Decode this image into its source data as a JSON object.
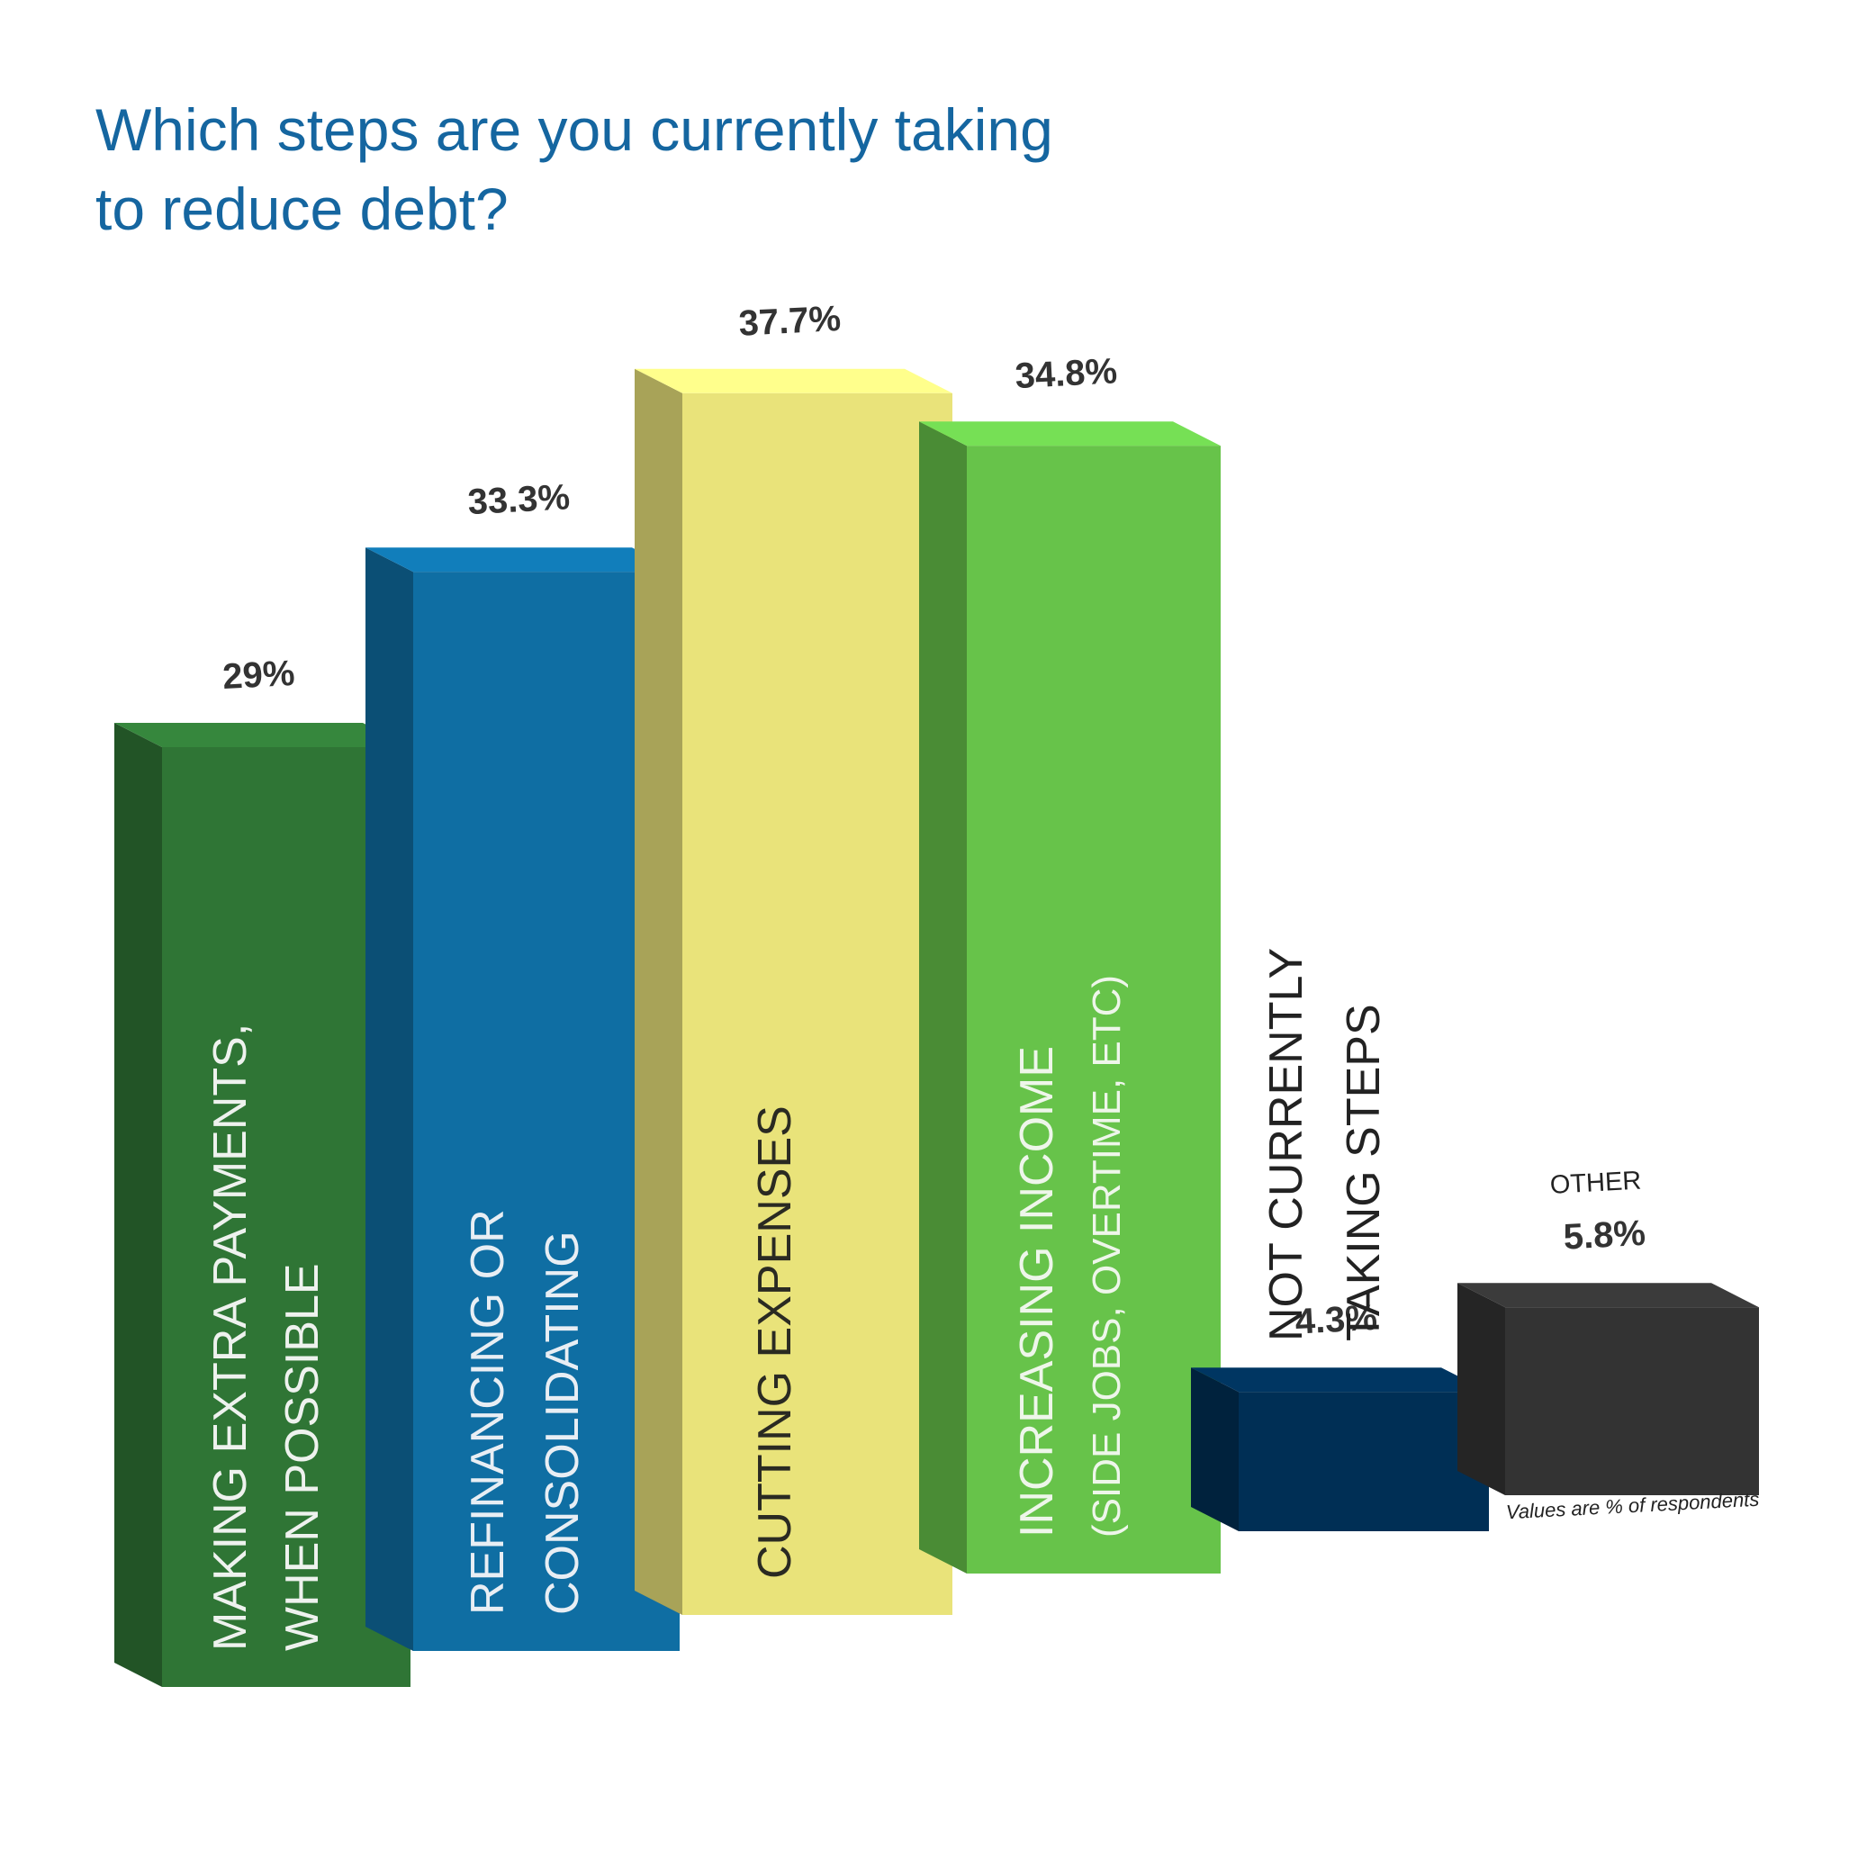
{
  "chart_data": {
    "type": "bar",
    "title": "Which steps are you currently taking to reduce debt?",
    "categories": [
      [
        "MAKING EXTRA PAYMENTS,",
        "WHEN POSSIBLE"
      ],
      [
        "REFINANCING OR",
        "CONSOLIDATING"
      ],
      [
        "CUTTING EXPENSES"
      ],
      [
        "INCREASING INCOME",
        "(SIDE JOBS, OVERTIME, ETC)"
      ],
      [
        "NOT CURRENTLY",
        "TAKING STEPS"
      ],
      [
        "OTHER"
      ]
    ],
    "values": [
      29,
      33.3,
      37.7,
      34.8,
      4.3,
      5.8
    ],
    "value_labels": [
      "29%",
      "33.3%",
      "37.7%",
      "34.8%",
      "4.3%",
      "5.8%"
    ],
    "colors": [
      "#2f7535",
      "#0f6ea3",
      "#e9e37a",
      "#67c34a",
      "#002f55",
      "#333333"
    ],
    "note": "Values are % of respondents"
  }
}
